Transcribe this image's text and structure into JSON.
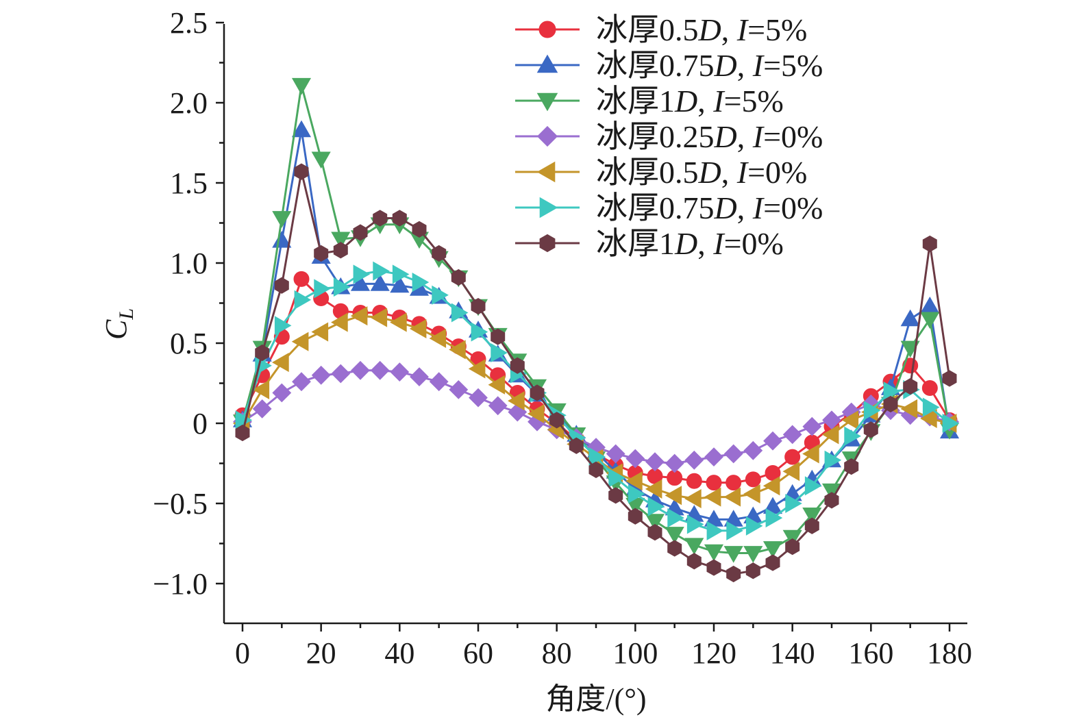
{
  "chart_data": {
    "type": "line",
    "title": "",
    "xlabel": "角度/(°)",
    "ylabel_main": "C",
    "ylabel_sub": "L",
    "xlim": [
      -5,
      185
    ],
    "ylim": [
      -1.25,
      2.5
    ],
    "x_ticks": [
      0,
      20,
      40,
      60,
      80,
      100,
      120,
      140,
      160,
      180
    ],
    "x_tick_labels": [
      "0",
      "20",
      "40",
      "60",
      "80",
      "100",
      "120",
      "140",
      "160",
      "180"
    ],
    "y_ticks": [
      -1.0,
      -0.5,
      0,
      0.5,
      1.0,
      1.5,
      2.0,
      2.5
    ],
    "y_tick_labels": [
      "−1.0",
      "−0.5",
      "0",
      "0.5",
      "1.0",
      "1.5",
      "2.0",
      "2.5"
    ],
    "legend_position": "top-right",
    "x": [
      0,
      5,
      10,
      15,
      20,
      25,
      30,
      35,
      40,
      45,
      50,
      55,
      60,
      65,
      70,
      75,
      80,
      85,
      90,
      95,
      100,
      105,
      110,
      115,
      120,
      125,
      130,
      135,
      140,
      145,
      150,
      155,
      160,
      165,
      170,
      175,
      180
    ],
    "series": [
      {
        "name_prefix": "冰厚0.5",
        "name_var": "D",
        "name_sep": ", ",
        "name_ivar": "I",
        "name_suffix": "=5%",
        "marker": "circle",
        "color": "#e8303e",
        "values": [
          0.05,
          0.3,
          0.54,
          0.9,
          0.78,
          0.7,
          0.69,
          0.69,
          0.66,
          0.62,
          0.56,
          0.48,
          0.4,
          0.3,
          0.19,
          0.09,
          0.0,
          -0.1,
          -0.19,
          -0.26,
          -0.31,
          -0.33,
          -0.34,
          -0.36,
          -0.37,
          -0.37,
          -0.35,
          -0.31,
          -0.21,
          -0.12,
          -0.02,
          0.06,
          0.17,
          0.26,
          0.36,
          0.22,
          0.02
        ]
      },
      {
        "name_prefix": "冰厚0.75",
        "name_var": "D",
        "name_sep": ", ",
        "name_ivar": "I",
        "name_suffix": "=5%",
        "marker": "triangle-up",
        "color": "#3a68c4",
        "values": [
          0.02,
          0.43,
          1.14,
          1.83,
          1.04,
          0.85,
          0.87,
          0.87,
          0.86,
          0.84,
          0.79,
          0.7,
          0.58,
          0.43,
          0.3,
          0.18,
          0.06,
          -0.07,
          -0.18,
          -0.3,
          -0.41,
          -0.48,
          -0.53,
          -0.57,
          -0.6,
          -0.6,
          -0.58,
          -0.52,
          -0.44,
          -0.35,
          -0.23,
          -0.1,
          0.05,
          0.22,
          0.65,
          0.73,
          -0.05
        ]
      },
      {
        "name_prefix": "冰厚1",
        "name_var": "D",
        "name_sep": ", ",
        "name_ivar": "I",
        "name_suffix": "=5%",
        "marker": "triangle-down",
        "color": "#4aa860",
        "values": [
          0.01,
          0.47,
          1.28,
          2.11,
          1.65,
          1.15,
          1.16,
          1.24,
          1.24,
          1.15,
          1.03,
          0.91,
          0.73,
          0.55,
          0.39,
          0.23,
          0.08,
          -0.07,
          -0.22,
          -0.37,
          -0.51,
          -0.61,
          -0.69,
          -0.76,
          -0.8,
          -0.81,
          -0.81,
          -0.78,
          -0.71,
          -0.57,
          -0.42,
          -0.22,
          -0.05,
          0.12,
          0.47,
          0.65,
          -0.04
        ]
      },
      {
        "name_prefix": "冰厚0.25",
        "name_var": "D",
        "name_sep": ", ",
        "name_ivar": "I",
        "name_suffix": "=0%",
        "marker": "diamond",
        "color": "#9a6ed0",
        "values": [
          0.01,
          0.09,
          0.19,
          0.26,
          0.3,
          0.31,
          0.33,
          0.33,
          0.32,
          0.29,
          0.26,
          0.21,
          0.16,
          0.11,
          0.07,
          0.01,
          -0.04,
          -0.09,
          -0.15,
          -0.19,
          -0.22,
          -0.24,
          -0.25,
          -0.23,
          -0.21,
          -0.19,
          -0.17,
          -0.11,
          -0.07,
          -0.02,
          0.02,
          0.07,
          0.12,
          0.08,
          0.05,
          0.04,
          0.01
        ]
      },
      {
        "name_prefix": "冰厚0.5",
        "name_var": "D",
        "name_sep": ", ",
        "name_ivar": "I",
        "name_suffix": "=0%",
        "marker": "triangle-left",
        "color": "#c4952a",
        "values": [
          0.0,
          0.21,
          0.38,
          0.51,
          0.57,
          0.63,
          0.67,
          0.66,
          0.63,
          0.59,
          0.53,
          0.46,
          0.34,
          0.24,
          0.14,
          0.06,
          -0.04,
          -0.13,
          -0.22,
          -0.31,
          -0.36,
          -0.41,
          -0.45,
          -0.47,
          -0.46,
          -0.46,
          -0.44,
          -0.39,
          -0.3,
          -0.19,
          -0.07,
          0.02,
          0.07,
          0.12,
          0.09,
          0.03,
          0.0
        ]
      },
      {
        "name_prefix": "冰厚0.75",
        "name_var": "D",
        "name_sep": ", ",
        "name_ivar": "I",
        "name_suffix": "=0%",
        "marker": "triangle-right",
        "color": "#3ec8c0",
        "values": [
          0.02,
          0.36,
          0.61,
          0.77,
          0.84,
          0.85,
          0.93,
          0.95,
          0.93,
          0.88,
          0.8,
          0.69,
          0.57,
          0.44,
          0.31,
          0.19,
          0.05,
          -0.09,
          -0.21,
          -0.34,
          -0.44,
          -0.52,
          -0.59,
          -0.63,
          -0.67,
          -0.67,
          -0.64,
          -0.59,
          -0.5,
          -0.39,
          -0.23,
          -0.08,
          0.08,
          0.2,
          0.21,
          0.1,
          0.0
        ]
      },
      {
        "name_prefix": "冰厚1",
        "name_var": "D",
        "name_sep": ", ",
        "name_ivar": "I",
        "name_suffix": "=0%",
        "marker": "hexagon",
        "color": "#6b3a44",
        "values": [
          -0.06,
          0.44,
          0.86,
          1.57,
          1.06,
          1.08,
          1.19,
          1.28,
          1.28,
          1.21,
          1.06,
          0.91,
          0.73,
          0.54,
          0.36,
          0.19,
          0.02,
          -0.14,
          -0.29,
          -0.45,
          -0.58,
          -0.68,
          -0.78,
          -0.86,
          -0.9,
          -0.94,
          -0.92,
          -0.87,
          -0.77,
          -0.64,
          -0.48,
          -0.27,
          -0.04,
          0.12,
          0.23,
          1.12,
          0.28
        ]
      }
    ]
  }
}
